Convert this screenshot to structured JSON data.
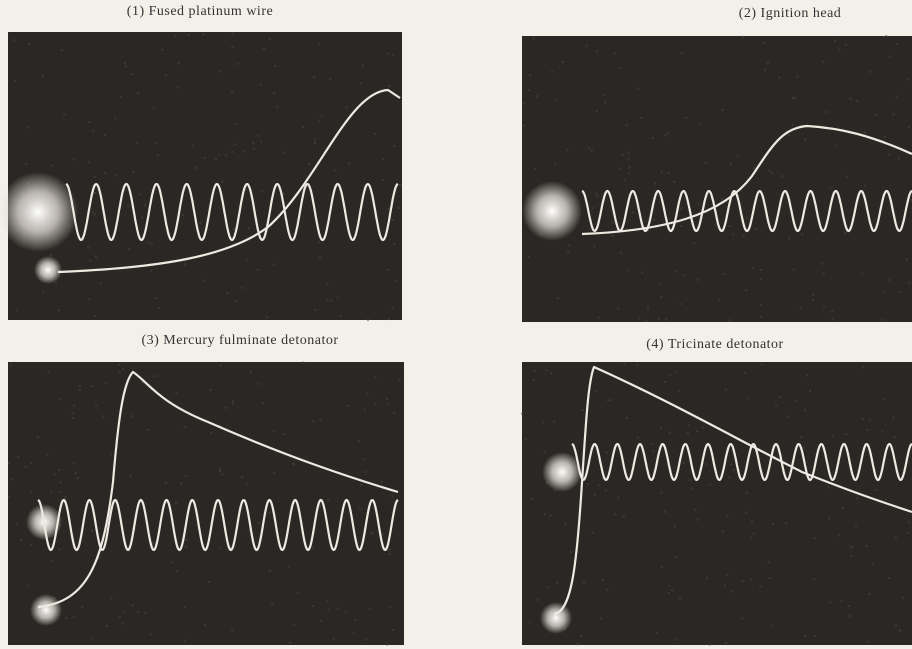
{
  "panels": [
    {
      "caption": "(1) Fused platinum wire"
    },
    {
      "caption": "(2) Ignition head"
    },
    {
      "caption": "(3) Mercury fulminate detonator"
    },
    {
      "caption": "(4) Tricinate detonator"
    }
  ]
}
